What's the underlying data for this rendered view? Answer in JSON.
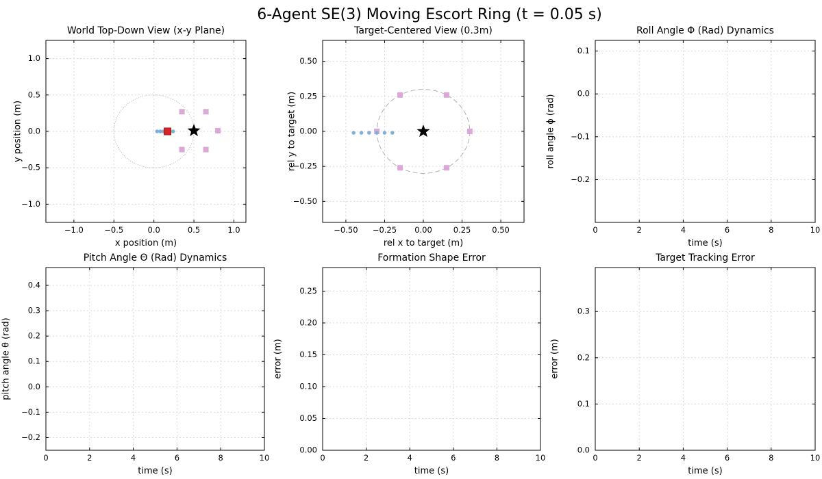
{
  "figure_title": "6-Agent SE(3) Moving Escort Ring (t = 0.05 s)",
  "chart_data": [
    {
      "id": "world",
      "type": "scatter",
      "title": "World Top-Down View (x-y Plane)",
      "xlabel": "x position (m)",
      "ylabel": "y position (m)",
      "xlim": [
        -1.35,
        1.15
      ],
      "ylim": [
        -1.25,
        1.25
      ],
      "xticks": [
        -1.0,
        -0.5,
        0.0,
        0.5,
        1.0
      ],
      "xtick_labels": [
        "−1.0",
        "−0.5",
        "0.0",
        "0.5",
        "1.0"
      ],
      "yticks": [
        -1.0,
        -0.5,
        0.0,
        0.5,
        1.0
      ],
      "ytick_labels": [
        "−1.0",
        "−0.5",
        "0.0",
        "0.5",
        "1.0"
      ],
      "grid": true,
      "series": [
        {
          "kind": "dotted-circle",
          "color": "#b0b0b0",
          "center": [
            0.0,
            0.0
          ],
          "radius": 0.5
        },
        {
          "kind": "squares",
          "color": "#dba8d8",
          "x": [
            0.35,
            0.65,
            0.8,
            0.65,
            0.35
          ],
          "y": [
            0.27,
            0.27,
            0.01,
            -0.25,
            -0.25
          ]
        },
        {
          "kind": "dots",
          "color": "#7fb0d8",
          "x": [
            0.04,
            0.08,
            0.12,
            0.16,
            0.2,
            0.24
          ],
          "y": [
            0.0,
            0.0,
            0.0,
            0.0,
            0.0,
            0.0
          ]
        },
        {
          "kind": "red-squares",
          "color": "#d62728",
          "x": [
            0.17
          ],
          "y": [
            0.0
          ]
        },
        {
          "kind": "star",
          "color": "#000000",
          "x": [
            0.5
          ],
          "y": [
            0.01
          ]
        }
      ]
    },
    {
      "id": "target",
      "type": "scatter",
      "title": "Target-Centered View (0.3m)",
      "xlabel": "rel x to target (m)",
      "ylabel": "rel y to target (m)",
      "xlim": [
        -0.65,
        0.65
      ],
      "ylim": [
        -0.65,
        0.65
      ],
      "xticks": [
        -0.5,
        -0.25,
        0.0,
        0.25,
        0.5
      ],
      "xtick_labels": [
        "−0.50",
        "−0.25",
        "0.00",
        "0.25",
        "0.50"
      ],
      "yticks": [
        -0.5,
        -0.25,
        0.0,
        0.25,
        0.5
      ],
      "ytick_labels": [
        "−0.50",
        "−0.25",
        "0.00",
        "0.25",
        "0.50"
      ],
      "grid": true,
      "series": [
        {
          "kind": "dashed-circle",
          "color": "#b0b0b0",
          "center": [
            0.0,
            0.0
          ],
          "radius": 0.3
        },
        {
          "kind": "squares",
          "color": "#dba8d8",
          "x": [
            -0.3,
            -0.15,
            0.15,
            0.3,
            0.15,
            -0.15
          ],
          "y": [
            0.0,
            0.26,
            0.26,
            0.0,
            -0.26,
            -0.26
          ]
        },
        {
          "kind": "dots",
          "color": "#7fb0d8",
          "x": [
            -0.45,
            -0.4,
            -0.35,
            -0.3,
            -0.25,
            -0.2
          ],
          "y": [
            -0.01,
            -0.01,
            -0.01,
            -0.01,
            -0.01,
            -0.01
          ]
        },
        {
          "kind": "star",
          "color": "#000000",
          "x": [
            0.0
          ],
          "y": [
            0.0
          ]
        }
      ]
    },
    {
      "id": "roll",
      "type": "line",
      "title": "Roll Angle Φ (Rad) Dynamics",
      "xlabel": "time (s)",
      "ylabel": "roll angle ϕ (rad)",
      "xlim": [
        0,
        10
      ],
      "ylim": [
        -0.3,
        0.125
      ],
      "xticks": [
        0,
        2,
        4,
        6,
        8,
        10
      ],
      "xtick_labels": [
        "0",
        "2",
        "4",
        "6",
        "8",
        "10"
      ],
      "yticks": [
        -0.2,
        -0.1,
        0.0,
        0.1
      ],
      "ytick_labels": [
        "−0.2",
        "−0.1",
        "0.0",
        "0.1"
      ],
      "grid": true,
      "series": []
    },
    {
      "id": "pitch",
      "type": "line",
      "title": "Pitch Angle Θ (Rad) Dynamics",
      "xlabel": "time (s)",
      "ylabel": "pitch angle θ (rad)",
      "xlim": [
        0,
        10
      ],
      "ylim": [
        -0.25,
        0.47
      ],
      "xticks": [
        0,
        2,
        4,
        6,
        8,
        10
      ],
      "xtick_labels": [
        "0",
        "2",
        "4",
        "6",
        "8",
        "10"
      ],
      "yticks": [
        -0.2,
        -0.1,
        0.0,
        0.1,
        0.2,
        0.3,
        0.4
      ],
      "ytick_labels": [
        "−0.2",
        "−0.1",
        "0.0",
        "0.1",
        "0.2",
        "0.3",
        "0.4"
      ],
      "grid": true,
      "series": []
    },
    {
      "id": "formation",
      "type": "line",
      "title": "Formation Shape Error",
      "xlabel": "time (s)",
      "ylabel": "error (m)",
      "xlim": [
        0,
        10
      ],
      "ylim": [
        0,
        0.287
      ],
      "xticks": [
        0,
        2,
        4,
        6,
        8,
        10
      ],
      "xtick_labels": [
        "0",
        "2",
        "4",
        "6",
        "8",
        "10"
      ],
      "yticks": [
        0.0,
        0.05,
        0.1,
        0.15,
        0.2,
        0.25
      ],
      "ytick_labels": [
        "0.00",
        "0.05",
        "0.10",
        "0.15",
        "0.20",
        "0.25"
      ],
      "grid": true,
      "series": []
    },
    {
      "id": "tracking",
      "type": "line",
      "title": "Target Tracking Error",
      "xlabel": "time (s)",
      "ylabel": "error (m)",
      "xlim": [
        0,
        10
      ],
      "ylim": [
        0,
        0.395
      ],
      "xticks": [
        0,
        2,
        4,
        6,
        8,
        10
      ],
      "xtick_labels": [
        "0",
        "2",
        "4",
        "6",
        "8",
        "10"
      ],
      "yticks": [
        0.0,
        0.1,
        0.2,
        0.3
      ],
      "ytick_labels": [
        "0.0",
        "0.1",
        "0.2",
        "0.3"
      ],
      "grid": true,
      "series": []
    }
  ]
}
